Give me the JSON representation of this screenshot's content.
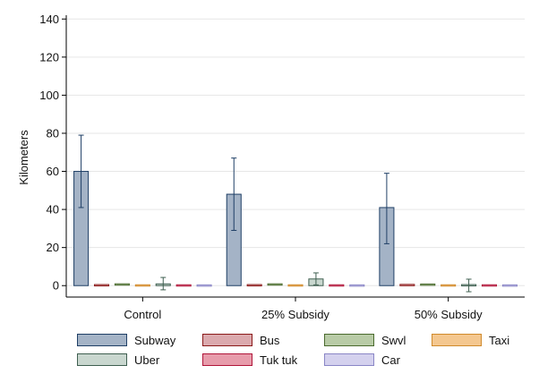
{
  "chart_data": {
    "type": "bar",
    "title": "",
    "xlabel": "",
    "ylabel": "Kilometers",
    "ylim": [
      -6,
      142
    ],
    "yticks": [
      0,
      20,
      40,
      60,
      80,
      100,
      120,
      140
    ],
    "grid": true,
    "legend_position": "bottom",
    "categories": [
      "Control",
      "25% Subsidy",
      "50% Subsidy"
    ],
    "series": [
      {
        "name": "Subway",
        "fill": "#a4b3c6",
        "stroke": "#1f3f66",
        "values": [
          60,
          48,
          41
        ],
        "err_low": [
          41,
          29,
          22
        ],
        "err_high": [
          79,
          67,
          59
        ]
      },
      {
        "name": "Bus",
        "fill": "#dba9ad",
        "stroke": "#8b1a1a",
        "values": [
          0.2,
          0.2,
          0.3
        ],
        "err_low": [
          0.1,
          0.1,
          0.1
        ],
        "err_high": [
          0.3,
          0.3,
          0.5
        ]
      },
      {
        "name": "Swvl",
        "fill": "#b8cba6",
        "stroke": "#4a6a2e",
        "values": [
          0.6,
          0.6,
          0.5
        ],
        "err_low": [
          0.3,
          0.3,
          0.2
        ],
        "err_high": [
          0.9,
          0.9,
          0.8
        ]
      },
      {
        "name": "Taxi",
        "fill": "#f4c78f",
        "stroke": "#d08a2c",
        "values": [
          0.1,
          0.1,
          0.1
        ],
        "err_low": [
          0.0,
          0.0,
          0.0
        ],
        "err_high": [
          0.2,
          0.2,
          0.2
        ]
      },
      {
        "name": "Uber",
        "fill": "#c9d7cf",
        "stroke": "#3f5f50",
        "values": [
          0.9,
          3.5,
          0.2
        ],
        "err_low": [
          -2.2,
          0.4,
          -3.2
        ],
        "err_high": [
          4.3,
          6.7,
          3.4
        ]
      },
      {
        "name": "Tuk tuk",
        "fill": "#e79cab",
        "stroke": "#b0163a",
        "values": [
          0.1,
          0.1,
          0.1
        ],
        "err_low": [
          0.0,
          0.0,
          0.0
        ],
        "err_high": [
          0.2,
          0.2,
          0.2
        ]
      },
      {
        "name": "Car",
        "fill": "#d4d1ee",
        "stroke": "#8a86c6",
        "values": [
          0.05,
          0.05,
          0.05
        ],
        "err_low": [
          0.0,
          0.0,
          0.0
        ],
        "err_high": [
          0.1,
          0.1,
          0.1
        ]
      }
    ]
  }
}
